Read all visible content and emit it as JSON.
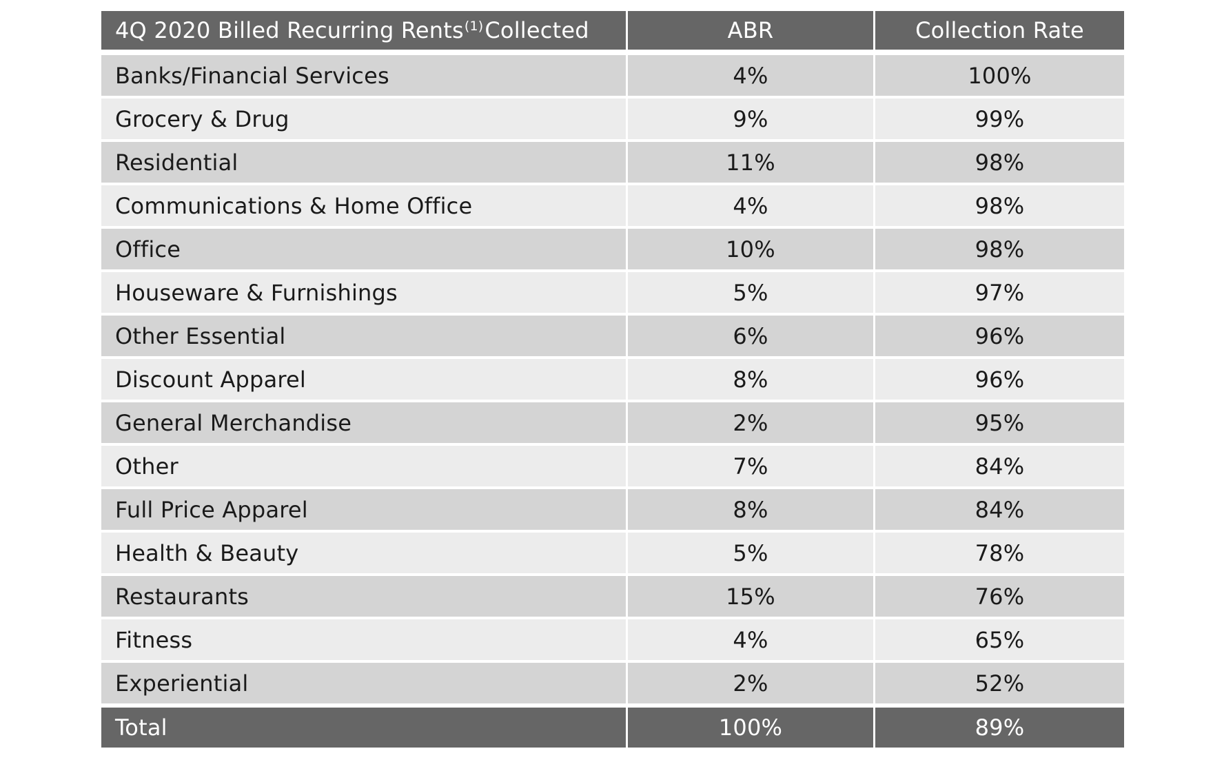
{
  "chart_data": {
    "type": "table",
    "columns": [
      {
        "label": "4Q 2020 Billed Recurring Rents",
        "footnote": "(1)",
        "label_suffix": "Collected"
      },
      {
        "label": "ABR"
      },
      {
        "label": "Collection Rate"
      }
    ],
    "rows": [
      {
        "category": "Banks/Financial Services",
        "abr": "4%",
        "collection_rate": "100%"
      },
      {
        "category": "Grocery & Drug",
        "abr": "9%",
        "collection_rate": "99%"
      },
      {
        "category": "Residential",
        "abr": "11%",
        "collection_rate": "98%"
      },
      {
        "category": "Communications & Home Office",
        "abr": "4%",
        "collection_rate": "98%"
      },
      {
        "category": "Office",
        "abr": "10%",
        "collection_rate": "98%"
      },
      {
        "category": "Houseware & Furnishings",
        "abr": "5%",
        "collection_rate": "97%"
      },
      {
        "category": "Other Essential",
        "abr": "6%",
        "collection_rate": "96%"
      },
      {
        "category": "Discount Apparel",
        "abr": "8%",
        "collection_rate": "96%"
      },
      {
        "category": "General Merchandise",
        "abr": "2%",
        "collection_rate": "95%"
      },
      {
        "category": "Other",
        "abr": "7%",
        "collection_rate": "84%"
      },
      {
        "category": "Full Price Apparel",
        "abr": "8%",
        "collection_rate": "84%"
      },
      {
        "category": "Health & Beauty",
        "abr": "5%",
        "collection_rate": "78%"
      },
      {
        "category": "Restaurants",
        "abr": "15%",
        "collection_rate": "76%"
      },
      {
        "category": "Fitness",
        "abr": "4%",
        "collection_rate": "65%"
      },
      {
        "category": "Experiential",
        "abr": "2%",
        "collection_rate": "52%"
      }
    ],
    "total": {
      "label": "Total",
      "abr": "100%",
      "collection_rate": "89%"
    },
    "colors": {
      "header_background": "#666666",
      "header_text": "#ffffff",
      "row_dark": "#d4d4d4",
      "row_light": "#ececec",
      "body_text": "#1a1a1a"
    }
  }
}
